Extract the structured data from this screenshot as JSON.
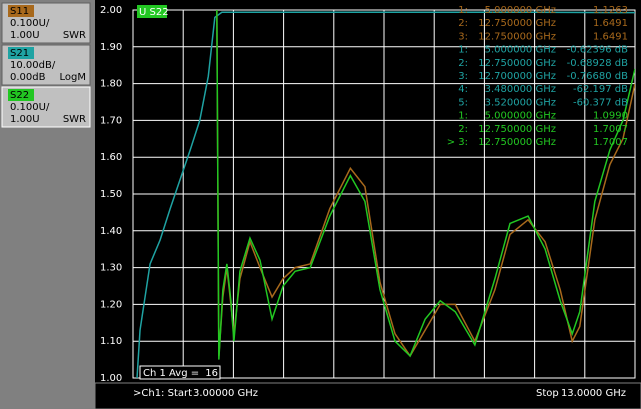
{
  "chart_data": {
    "type": "line",
    "trace_label": "U S22",
    "xlim": [
      3,
      13
    ],
    "ylim": [
      1,
      2
    ],
    "y2lim": [
      -100,
      0
    ],
    "grid": true,
    "yticks": [
      {
        "value": 2,
        "label": "2.00"
      },
      {
        "value": 1.9,
        "label": "1.90"
      },
      {
        "value": 1.8,
        "label": "1.80"
      },
      {
        "value": 1.7,
        "label": "1.70"
      },
      {
        "value": 1.6,
        "label": "1.60"
      },
      {
        "value": 1.5,
        "label": "1.50"
      },
      {
        "value": 1.4,
        "label": "1.40"
      },
      {
        "value": 1.3,
        "label": "1.30"
      },
      {
        "value": 1.2,
        "label": "1.20"
      },
      {
        "value": 1.1,
        "label": "1.10"
      },
      {
        "value": 1,
        "label": "1.00"
      }
    ],
    "series": [
      {
        "name": "S21",
        "color": "#1fa3a3",
        "axis": "y2",
        "x": [
          3.08,
          3.14,
          3.34,
          3.54,
          3.74,
          3.94,
          4.14,
          4.33,
          4.5,
          4.63,
          4.77,
          5.5,
          7,
          9,
          11,
          12.7,
          13
        ],
        "values": [
          -100,
          -87,
          -69,
          -62.5,
          -54,
          -46,
          -38,
          -30,
          -18,
          -2,
          -0.6,
          -0.6,
          -0.6,
          -0.6,
          -0.6,
          -0.7,
          -0.7
        ]
      },
      {
        "name": "S11",
        "color": "#a8691c",
        "x": [
          4.67,
          4.71,
          4.79,
          4.87,
          4.95,
          5.01,
          5.13,
          5.33,
          5.53,
          5.77,
          5.99,
          6.23,
          6.53,
          6.92,
          7.33,
          7.62,
          7.92,
          8.22,
          8.52,
          8.82,
          9.12,
          9.42,
          9.81,
          10.21,
          10.51,
          10.87,
          11.21,
          11.51,
          11.75,
          11.9,
          12.2,
          12.5,
          12.76,
          13
        ],
        "values": [
          2,
          1.06,
          1.22,
          1.3,
          1.2,
          1.12,
          1.27,
          1.37,
          1.3,
          1.22,
          1.27,
          1.3,
          1.31,
          1.46,
          1.57,
          1.52,
          1.26,
          1.12,
          1.06,
          1.13,
          1.2,
          1.2,
          1.1,
          1.24,
          1.39,
          1.43,
          1.37,
          1.24,
          1.1,
          1.14,
          1.43,
          1.58,
          1.65,
          1.8
        ]
      },
      {
        "name": "S22",
        "color": "#22c722",
        "x": [
          4.67,
          4.71,
          4.79,
          4.87,
          4.95,
          5.01,
          5.13,
          5.33,
          5.53,
          5.77,
          5.99,
          6.23,
          6.53,
          6.92,
          7.33,
          7.62,
          7.92,
          8.22,
          8.52,
          8.82,
          9.12,
          9.42,
          9.81,
          10.21,
          10.51,
          10.87,
          11.21,
          11.51,
          11.75,
          11.9,
          12.2,
          12.5,
          12.76,
          13
        ],
        "values": [
          2,
          1.05,
          1.24,
          1.31,
          1.21,
          1.1,
          1.29,
          1.38,
          1.32,
          1.16,
          1.25,
          1.29,
          1.3,
          1.44,
          1.55,
          1.48,
          1.24,
          1.1,
          1.06,
          1.16,
          1.21,
          1.18,
          1.09,
          1.27,
          1.42,
          1.44,
          1.35,
          1.21,
          1.12,
          1.18,
          1.48,
          1.62,
          1.7,
          1.84
        ]
      }
    ]
  },
  "trace_panel": [
    {
      "name": "S11",
      "scale": "0.100U/",
      "ref": "1.00U",
      "format": "SWR",
      "color": "#a8691c"
    },
    {
      "name": "S21",
      "scale": "10.00dB/",
      "ref": "0.00dB",
      "format": "LogM",
      "color": "#1fa3a3"
    },
    {
      "name": "S22",
      "scale": "0.100U/",
      "ref": "1.00U",
      "format": "SWR",
      "color": "#22c722"
    }
  ],
  "markers": [
    {
      "color": "#a8691c",
      "rows": [
        [
          "1:",
          "5.000000 GHz",
          "1.1263"
        ],
        [
          "2:",
          "12.750000 GHz",
          "1.6491"
        ],
        [
          "3:",
          "12.750000 GHz",
          "1.6491"
        ]
      ]
    },
    {
      "color": "#1fa3a3",
      "rows": [
        [
          "1:",
          "5.000000 GHz",
          "-0.62396 dB"
        ],
        [
          "2:",
          "12.750000 GHz",
          "-0.68928 dB"
        ],
        [
          "3:",
          "12.700000 GHz",
          "-0.76680 dB"
        ],
        [
          "4:",
          "3.480000 GHz",
          "-62.197 dB"
        ],
        [
          "5:",
          "3.520000 GHz",
          "-60.377 dB"
        ]
      ]
    },
    {
      "color": "#22c722",
      "rows": [
        [
          "1:",
          "5.000000 GHz",
          "1.0990"
        ],
        [
          "2:",
          "12.750000 GHz",
          "1.7007"
        ],
        [
          "> 3:",
          "12.750000 GHz",
          "1.7007"
        ]
      ]
    }
  ],
  "status": {
    "avg_label": "Ch 1 Avg =",
    "avg_value": "16",
    "start_label": ">Ch1: Start",
    "start_value": "3.00000 GHz",
    "stop_label": "Stop",
    "stop_value": "13.0000 GHz"
  }
}
